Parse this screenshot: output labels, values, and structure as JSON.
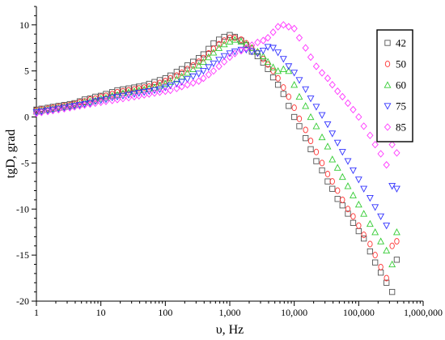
{
  "chart_data": {
    "type": "scatter",
    "title": "",
    "xlabel": "υ, Hz",
    "ylabel": "tgD, grad",
    "x_scale": "log",
    "xlim": [
      1,
      1000000
    ],
    "ylim": [
      -20,
      12
    ],
    "x_ticks": [
      1,
      10,
      100,
      1000,
      10000,
      100000,
      1000000
    ],
    "x_tick_labels": [
      "1",
      "10",
      "100",
      "1,000",
      "10,000",
      "100,000",
      "1,000,000"
    ],
    "y_ticks": [
      10,
      5,
      0,
      -5,
      -10,
      -15,
      -20
    ],
    "y_tick_labels": [
      "10",
      "5",
      "0",
      "-5",
      "-10",
      "-15",
      "-20"
    ],
    "grid": false,
    "legend_position": "top-right",
    "series": [
      {
        "name": "42",
        "marker": "square",
        "color": "#555555",
        "x": [
          1,
          1.2,
          1.5,
          1.8,
          2.2,
          2.7,
          3.3,
          3.9,
          4.7,
          5.6,
          6.8,
          8.2,
          10,
          12,
          15,
          18,
          22,
          27,
          33,
          39,
          47,
          56,
          68,
          82,
          100,
          120,
          150,
          180,
          220,
          270,
          330,
          390,
          470,
          560,
          680,
          820,
          1000,
          1200,
          1500,
          1800,
          2200,
          2700,
          3300,
          3900,
          4700,
          5600,
          6800,
          8200,
          10000,
          12000,
          15000,
          18000,
          22000,
          27000,
          33000,
          39000,
          47000,
          56000,
          68000,
          82000,
          100000,
          120000,
          150000,
          180000,
          220000,
          270000,
          330000,
          390000
        ],
        "y": [
          0.8,
          0.9,
          1.0,
          1.1,
          1.2,
          1.3,
          1.4,
          1.5,
          1.7,
          1.9,
          2.0,
          2.2,
          2.3,
          2.5,
          2.7,
          2.9,
          3.0,
          3.1,
          3.2,
          3.3,
          3.4,
          3.6,
          3.8,
          4.0,
          4.2,
          4.5,
          4.9,
          5.2,
          5.6,
          6.0,
          6.4,
          6.8,
          7.4,
          8.0,
          8.4,
          8.7,
          8.9,
          8.7,
          8.3,
          7.8,
          7.1,
          6.6,
          5.9,
          5.2,
          4.3,
          3.5,
          2.5,
          1.2,
          0.0,
          -1.0,
          -2.3,
          -3.5,
          -4.8,
          -5.8,
          -7.0,
          -7.8,
          -8.9,
          -9.6,
          -10.5,
          -11.5,
          -12.4,
          -13.2,
          -14.6,
          -15.8,
          -16.9,
          -18.0,
          -19.0,
          -15.5
        ]
      },
      {
        "name": "50",
        "marker": "circle",
        "color": "#ff3333",
        "x": [
          1,
          1.2,
          1.5,
          1.8,
          2.2,
          2.7,
          3.3,
          3.9,
          4.7,
          5.6,
          6.8,
          8.2,
          10,
          12,
          15,
          18,
          22,
          27,
          33,
          39,
          47,
          56,
          68,
          82,
          100,
          120,
          150,
          180,
          220,
          270,
          330,
          390,
          470,
          560,
          680,
          820,
          1000,
          1200,
          1500,
          1800,
          2200,
          2700,
          3300,
          3900,
          4700,
          5600,
          6800,
          8200,
          10000,
          12000,
          15000,
          18000,
          22000,
          27000,
          33000,
          39000,
          47000,
          56000,
          68000,
          82000,
          100000,
          120000,
          150000,
          180000,
          220000,
          270000,
          330000,
          390000
        ],
        "y": [
          0.7,
          0.8,
          0.9,
          1.0,
          1.1,
          1.2,
          1.3,
          1.4,
          1.6,
          1.7,
          1.9,
          2.0,
          2.2,
          2.3,
          2.5,
          2.7,
          2.8,
          2.9,
          3.0,
          3.1,
          3.2,
          3.3,
          3.5,
          3.7,
          3.9,
          4.2,
          4.5,
          4.8,
          5.2,
          5.6,
          6.0,
          6.4,
          6.9,
          7.4,
          7.9,
          8.3,
          8.6,
          8.6,
          8.4,
          8.0,
          7.5,
          7.0,
          6.3,
          5.7,
          5.0,
          4.2,
          3.2,
          2.2,
          1.0,
          -0.2,
          -1.4,
          -2.6,
          -3.8,
          -5.0,
          -6.2,
          -7.0,
          -8.0,
          -9.0,
          -10.0,
          -10.8,
          -11.8,
          -12.8,
          -13.8,
          -15.0,
          -16.3,
          -17.5,
          -14.0,
          -13.5
        ]
      },
      {
        "name": "60",
        "marker": "triangle-up",
        "color": "#33cc33",
        "x": [
          1,
          1.2,
          1.5,
          1.8,
          2.2,
          2.7,
          3.3,
          3.9,
          4.7,
          5.6,
          6.8,
          8.2,
          10,
          12,
          15,
          18,
          22,
          27,
          33,
          39,
          47,
          56,
          68,
          82,
          100,
          120,
          150,
          180,
          220,
          270,
          330,
          390,
          470,
          560,
          680,
          820,
          1000,
          1200,
          1500,
          1800,
          2200,
          2700,
          3300,
          3900,
          4700,
          5600,
          6800,
          8200,
          10000,
          12000,
          15000,
          18000,
          22000,
          27000,
          33000,
          39000,
          47000,
          56000,
          68000,
          82000,
          100000,
          120000,
          150000,
          180000,
          220000,
          270000,
          330000,
          390000
        ],
        "y": [
          0.6,
          0.7,
          0.8,
          0.9,
          1.0,
          1.1,
          1.2,
          1.3,
          1.4,
          1.6,
          1.7,
          1.8,
          2.0,
          2.1,
          2.3,
          2.4,
          2.6,
          2.7,
          2.8,
          2.9,
          3.0,
          3.1,
          3.2,
          3.4,
          3.6,
          3.8,
          4.1,
          4.4,
          4.8,
          5.2,
          5.6,
          6.0,
          6.5,
          7.0,
          7.5,
          7.9,
          8.2,
          8.4,
          8.2,
          7.9,
          7.5,
          7.1,
          6.6,
          6.0,
          5.4,
          5.0,
          5.2,
          5.0,
          3.5,
          2.2,
          1.2,
          0.0,
          -1.0,
          -2.2,
          -3.2,
          -4.6,
          -5.5,
          -6.5,
          -7.5,
          -8.5,
          -9.5,
          -10.5,
          -11.6,
          -12.5,
          -13.5,
          -14.5,
          -16.0,
          -12.5
        ]
      },
      {
        "name": "75",
        "marker": "triangle-down",
        "color": "#3333ff",
        "x": [
          1,
          1.2,
          1.5,
          1.8,
          2.2,
          2.7,
          3.3,
          3.9,
          4.7,
          5.6,
          6.8,
          8.2,
          10,
          12,
          15,
          18,
          22,
          27,
          33,
          39,
          47,
          56,
          68,
          82,
          100,
          120,
          150,
          180,
          220,
          270,
          330,
          390,
          470,
          560,
          680,
          820,
          1000,
          1200,
          1500,
          1800,
          2200,
          2700,
          3300,
          3900,
          4700,
          5600,
          6800,
          8200,
          10000,
          12000,
          15000,
          18000,
          22000,
          27000,
          33000,
          39000,
          47000,
          56000,
          68000,
          82000,
          100000,
          120000,
          150000,
          180000,
          220000,
          270000,
          330000,
          390000
        ],
        "y": [
          0.5,
          0.6,
          0.7,
          0.8,
          0.9,
          1.0,
          1.1,
          1.2,
          1.3,
          1.4,
          1.5,
          1.7,
          1.8,
          1.9,
          2.1,
          2.2,
          2.3,
          2.4,
          2.5,
          2.6,
          2.7,
          2.8,
          2.9,
          3.0,
          3.2,
          3.4,
          3.6,
          3.8,
          4.1,
          4.4,
          4.7,
          5.0,
          5.4,
          5.8,
          6.2,
          6.6,
          6.9,
          7.1,
          7.3,
          7.3,
          7.1,
          6.9,
          7.2,
          7.6,
          7.5,
          7.0,
          6.3,
          5.5,
          4.8,
          4.0,
          3.0,
          2.0,
          1.1,
          0.2,
          -0.8,
          -1.8,
          -2.8,
          -3.8,
          -4.8,
          -5.8,
          -6.8,
          -7.8,
          -8.8,
          -9.8,
          -10.8,
          -11.8,
          -7.5,
          -7.8
        ]
      },
      {
        "name": "85",
        "marker": "diamond",
        "color": "#ff33ff",
        "x": [
          1,
          1.2,
          1.5,
          1.8,
          2.2,
          2.7,
          3.3,
          3.9,
          4.7,
          5.6,
          6.8,
          8.2,
          10,
          12,
          15,
          18,
          22,
          27,
          33,
          39,
          47,
          56,
          68,
          82,
          100,
          120,
          150,
          180,
          220,
          270,
          330,
          390,
          470,
          560,
          680,
          820,
          1000,
          1200,
          1500,
          1800,
          2200,
          2700,
          3300,
          3900,
          4700,
          5600,
          6800,
          8200,
          10000,
          12000,
          15000,
          18000,
          22000,
          27000,
          33000,
          39000,
          47000,
          56000,
          68000,
          82000,
          100000,
          120000,
          150000,
          180000,
          220000,
          270000,
          330000,
          390000
        ],
        "y": [
          0.4,
          0.5,
          0.6,
          0.7,
          0.8,
          0.9,
          1.0,
          1.1,
          1.2,
          1.3,
          1.4,
          1.5,
          1.6,
          1.7,
          1.8,
          1.9,
          2.0,
          2.1,
          2.2,
          2.3,
          2.4,
          2.5,
          2.6,
          2.7,
          2.8,
          2.9,
          3.1,
          3.3,
          3.5,
          3.7,
          3.9,
          4.2,
          4.6,
          5.0,
          5.5,
          6.0,
          6.5,
          6.9,
          7.2,
          7.5,
          7.8,
          8.1,
          8.3,
          8.6,
          9.2,
          9.8,
          10.0,
          9.8,
          9.6,
          8.6,
          7.5,
          6.5,
          5.5,
          4.8,
          4.2,
          3.5,
          2.8,
          2.2,
          1.5,
          0.8,
          0.0,
          -1.0,
          -2.0,
          -3.0,
          -4.0,
          -5.2,
          -3.0,
          -3.9
        ]
      }
    ]
  }
}
